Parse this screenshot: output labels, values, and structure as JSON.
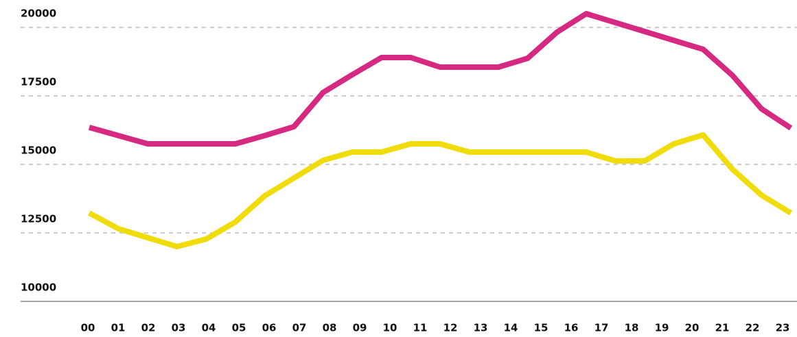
{
  "chart_data": {
    "type": "line",
    "categories": [
      "00",
      "01",
      "02",
      "03",
      "04",
      "05",
      "06",
      "07",
      "08",
      "09",
      "10",
      "11",
      "12",
      "13",
      "14",
      "15",
      "16",
      "17",
      "18",
      "19",
      "20",
      "21",
      "22",
      "23",
      null
    ],
    "series": [
      {
        "color": "#d62a82",
        "values": [
          16350,
          16050,
          15750,
          15750,
          15750,
          15750,
          16050,
          16375,
          17625,
          18275,
          18900,
          18900,
          18550,
          18550,
          18550,
          18875,
          19825,
          20500,
          20175,
          19850,
          19525,
          19200,
          18250,
          17025,
          16325
        ]
      },
      {
        "color": "#f0dc0a",
        "values": [
          13225,
          12650,
          12325,
          12000,
          12275,
          12900,
          13850,
          14500,
          15150,
          15450,
          15450,
          15750,
          15750,
          15450,
          15450,
          15450,
          15450,
          15450,
          15125,
          15125,
          15750,
          16075,
          14825,
          13875,
          13225
        ]
      }
    ],
    "ylim": [
      10000,
      21000
    ],
    "yticks": [
      10000,
      12500,
      15000,
      17500,
      20000
    ],
    "grid": true
  }
}
